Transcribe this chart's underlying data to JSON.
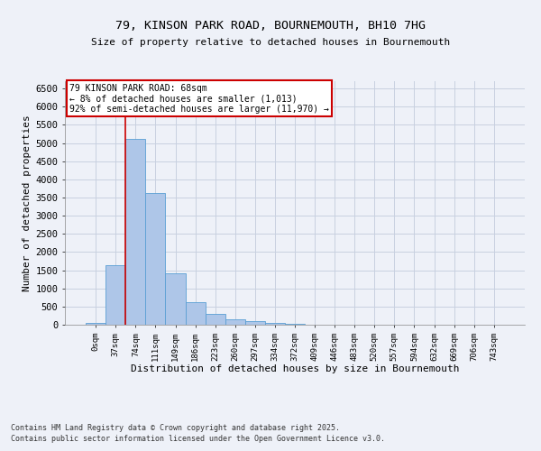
{
  "title_line1": "79, KINSON PARK ROAD, BOURNEMOUTH, BH10 7HG",
  "title_line2": "Size of property relative to detached houses in Bournemouth",
  "xlabel": "Distribution of detached houses by size in Bournemouth",
  "ylabel": "Number of detached properties",
  "categories": [
    "0sqm",
    "37sqm",
    "74sqm",
    "111sqm",
    "149sqm",
    "186sqm",
    "223sqm",
    "260sqm",
    "297sqm",
    "334sqm",
    "372sqm",
    "409sqm",
    "446sqm",
    "483sqm",
    "520sqm",
    "557sqm",
    "594sqm",
    "632sqm",
    "669sqm",
    "706sqm",
    "743sqm"
  ],
  "values": [
    60,
    1650,
    5100,
    3620,
    1420,
    610,
    300,
    155,
    105,
    60,
    30,
    0,
    0,
    0,
    0,
    0,
    0,
    0,
    0,
    0,
    0
  ],
  "bar_color": "#aec6e8",
  "bar_edge_color": "#5a9fd4",
  "grid_color": "#c8d0e0",
  "bg_color": "#eef1f8",
  "subject_line_color": "#cc0000",
  "annotation_text": "79 KINSON PARK ROAD: 68sqm\n← 8% of detached houses are smaller (1,013)\n92% of semi-detached houses are larger (11,970) →",
  "annotation_box_color": "#cc0000",
  "footer_line1": "Contains HM Land Registry data © Crown copyright and database right 2025.",
  "footer_line2": "Contains public sector information licensed under the Open Government Licence v3.0.",
  "ylim": [
    0,
    6700
  ],
  "yticks": [
    0,
    500,
    1000,
    1500,
    2000,
    2500,
    3000,
    3500,
    4000,
    4500,
    5000,
    5500,
    6000,
    6500
  ]
}
